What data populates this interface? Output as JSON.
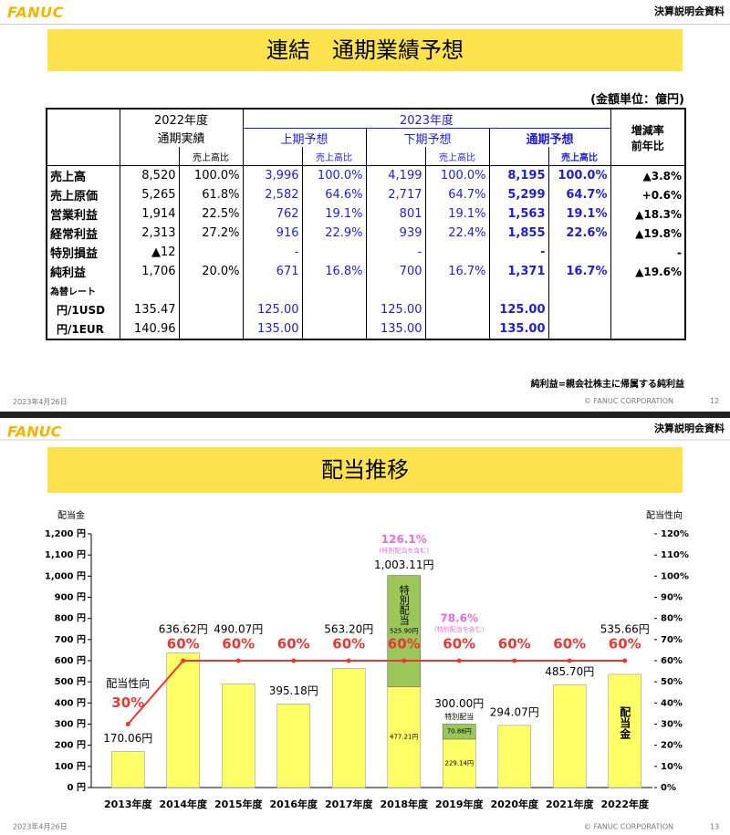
{
  "slide1": {
    "brand": "FANUC",
    "tag": "決算説明会資料",
    "title": "連結　通期業績予想",
    "unit": "(金額単位：億円)",
    "table": {
      "header": {
        "fy2022": "2022年度",
        "actual": "通期実績",
        "fy2023": "2023年度",
        "first_half": "上期予想",
        "second_half": "下期予想",
        "full_year": "通期予想",
        "ratio": "売上高比",
        "change": "増減率",
        "change_sub": "前年比"
      },
      "rows": [
        [
          "売上高",
          "8,520",
          "100.0%",
          "3,996",
          "100.0%",
          "4,199",
          "100.0%",
          "8,195",
          "100.0%",
          "▲3.8%"
        ],
        [
          "売上原価",
          "5,265",
          "61.8%",
          "2,582",
          "64.6%",
          "2,717",
          "64.7%",
          "5,299",
          "64.7%",
          "+0.6%"
        ],
        [
          "営業利益",
          "1,914",
          "22.5%",
          "762",
          "19.1%",
          "801",
          "19.1%",
          "1,563",
          "19.1%",
          "▲18.3%"
        ],
        [
          "経常利益",
          "2,313",
          "27.2%",
          "916",
          "22.9%",
          "939",
          "22.4%",
          "1,855",
          "22.6%",
          "▲19.8%"
        ],
        [
          "特別損益",
          "▲12",
          null,
          "-",
          null,
          "-",
          null,
          "-",
          null,
          "-"
        ],
        [
          "純利益",
          "1,706",
          "20.0%",
          "671",
          "16.8%",
          "700",
          "16.7%",
          "1,371",
          "16.7%",
          "▲19.6%"
        ],
        [
          "為替レート",
          null,
          null,
          null,
          null,
          null,
          null,
          null,
          null,
          null
        ],
        [
          "円/1USD",
          "135.47",
          null,
          "125.00",
          null,
          "125.00",
          null,
          "125.00",
          null,
          null
        ],
        [
          "円/1EUR",
          "140.96",
          null,
          "135.00",
          null,
          "135.00",
          null,
          "135.00",
          null,
          null
        ]
      ]
    },
    "note": "純利益=親会社株主に帰属する純利益",
    "date": "2023年4月26日",
    "copyright": "© FANUC CORPORATION",
    "page": "12"
  },
  "slide2": {
    "brand": "FANUC",
    "tag": "決算説明会資料",
    "title": "配当推移",
    "date": "2023年4月26日",
    "copyright": "© FANUC CORPORATION",
    "page": "13"
  },
  "chart_data": {
    "type": "bar",
    "stacked": true,
    "ylabel": "配当金",
    "y2label": "配当性向",
    "categories": [
      "2013年度",
      "2014年度",
      "2015年度",
      "2016年度",
      "2017年度",
      "2018年度",
      "2019年度",
      "2020年度",
      "2021年度",
      "2022年度"
    ],
    "ylim": [
      0,
      1200
    ],
    "yticks": [
      {
        "value": 0,
        "label": "0 円"
      },
      {
        "value": 100,
        "label": "100 円"
      },
      {
        "value": 200,
        "label": "200 円"
      },
      {
        "value": 300,
        "label": "300 円"
      },
      {
        "value": 400,
        "label": "400 円"
      },
      {
        "value": 500,
        "label": "500 円"
      },
      {
        "value": 600,
        "label": "600 円"
      },
      {
        "value": 700,
        "label": "700 円"
      },
      {
        "value": 800,
        "label": "800 円"
      },
      {
        "value": 900,
        "label": "900 円"
      },
      {
        "value": 1000,
        "label": "1,000 円"
      },
      {
        "value": 1100,
        "label": "1,100 円"
      },
      {
        "value": 1200,
        "label": "1,200 円"
      }
    ],
    "y2lim": [
      0,
      120
    ],
    "y2ticks": [
      {
        "value": 0,
        "label": "0%"
      },
      {
        "value": 10,
        "label": "10%"
      },
      {
        "value": 20,
        "label": "20%"
      },
      {
        "value": 30,
        "label": "30%"
      },
      {
        "value": 40,
        "label": "40%"
      },
      {
        "value": 50,
        "label": "50%"
      },
      {
        "value": 60,
        "label": "60%"
      },
      {
        "value": 70,
        "label": "70%"
      },
      {
        "value": 80,
        "label": "80%"
      },
      {
        "value": 90,
        "label": "90%"
      },
      {
        "value": 100,
        "label": "100%"
      },
      {
        "value": 110,
        "label": "110%"
      },
      {
        "value": 120,
        "label": "120%"
      }
    ],
    "series": [
      {
        "name": "配当金",
        "color": "#ffff66",
        "values": [
          170.06,
          636.62,
          490.07,
          395.18,
          563.2,
          477.21,
          229.14,
          294.07,
          485.7,
          535.66
        ],
        "value_labels": [
          "170.06円",
          "636.62円",
          "490.07円",
          "395.18円",
          "563.20円",
          "477.21円",
          "229.14円",
          "294.07円",
          "485.70円",
          "535.66円"
        ]
      },
      {
        "name": "特別配当",
        "color": "#9bc75a",
        "values": [
          null,
          null,
          null,
          null,
          null,
          525.9,
          70.86,
          null,
          null,
          null
        ],
        "value_labels": [
          null,
          null,
          null,
          null,
          null,
          "525.90円",
          "70.86円",
          null,
          null,
          null
        ]
      },
      {
        "name": "配当性向",
        "type": "line",
        "axis": "y2",
        "color": "#e53935",
        "values": [
          30,
          60,
          60,
          60,
          60,
          60,
          60,
          60,
          60,
          60
        ],
        "value_labels": [
          "30%",
          "60%",
          "60%",
          "60%",
          "60%",
          "60%",
          "60%",
          "60%",
          "60%",
          "60%"
        ]
      }
    ],
    "totals": {
      "values": [
        null,
        null,
        null,
        null,
        null,
        1003.11,
        300.0,
        null,
        null,
        null
      ],
      "value_labels": [
        null,
        null,
        null,
        null,
        null,
        "1,003.11円",
        "300.00円",
        null,
        null,
        null
      ]
    },
    "total_payout": {
      "color": "#e070e0",
      "values": [
        null,
        null,
        null,
        null,
        null,
        126.1,
        78.6,
        null,
        null,
        null
      ],
      "value_labels": [
        null,
        null,
        null,
        null,
        null,
        "126.1%",
        "78.6%",
        null,
        null,
        null
      ],
      "note": "(特別配当を含む)"
    }
  }
}
